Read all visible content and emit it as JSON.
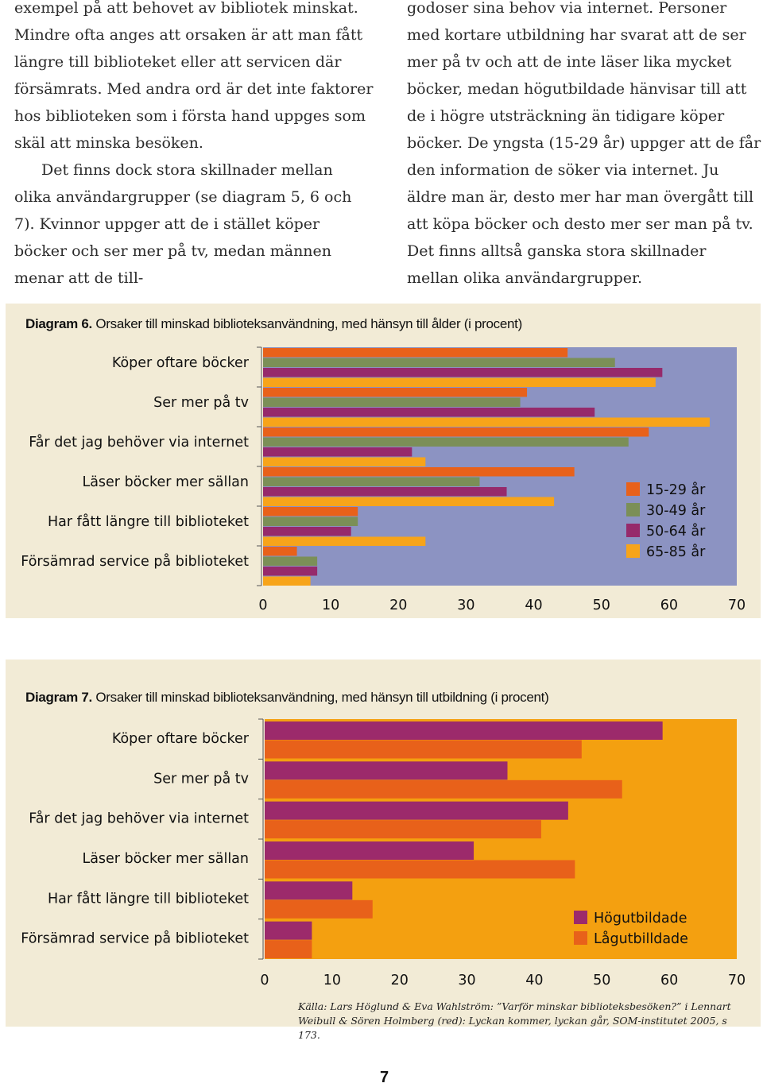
{
  "text": {
    "left_paragraphs": [
      "exempel på att behovet av bibliotek minskat. Mindre ofta anges att orsaken är att man fått längre till biblioteket eller att servicen där försämrats. Med andra ord är det inte faktorer hos biblioteken som i första hand uppges som skäl att minska besöken.",
      "Det finns dock stora skillnader mellan olika användargrupper (se diagram 5, 6 och 7). Kvinnor uppger att de i stället köper böcker och ser mer på tv, medan männen menar att de till-"
    ],
    "right_paragraphs": [
      "godoser sina behov via internet. Personer med kortare utbildning har svarat att de ser mer på tv och att de inte läser lika mycket böcker, medan högutbildade hänvisar till att de i högre utsträckning än tidigare köper böcker. De yngsta (15-29 år) uppger att de får den information de söker via internet. Ju äldre man är, desto mer har man övergått till att köpa böcker och desto mer ser man på tv. Det finns alltså ganska stora skillnader mellan olika användargrupper."
    ]
  },
  "diagram6": {
    "label": "Diagram 6.",
    "title": "Orsaker till minskad biblioteksanvändning, med hänsyn till ålder (i procent)"
  },
  "diagram7": {
    "label": "Diagram 7.",
    "title": "Orsaker till minskad biblioteksanvändning, med hänsyn till utbildning (i procent)"
  },
  "source": "Källa: Lars Höglund & Eva Wahlström: ”Varför minskar biblioteksbesöken?” i Lennart Weibull & Sören Holmberg (red): Lyckan kommer, lyckan går, SOM-institutet 2005, s 173.",
  "page_number": "7",
  "colors": {
    "plot_bg6": "#8c93c2",
    "plot_bg7": "#f4a010",
    "panel_bg": "#f2ebd6",
    "orange": "#e8611a",
    "green": "#7b8f57",
    "purple": "#962a6b",
    "yellow": "#f7a41a",
    "high": "#9c2a6b",
    "low": "#e8611a"
  },
  "chart_data": [
    {
      "type": "bar",
      "orientation": "horizontal",
      "title": "Orsaker till minskad biblioteksanvändning, med hänsyn till ålder (i procent)",
      "categories": [
        "Köper oftare böcker",
        "Ser mer på tv",
        "Får det jag behöver via internet",
        "Läser böcker mer sällan",
        "Har fått längre till biblioteket",
        "Försämrad service på biblioteket"
      ],
      "series": [
        {
          "name": "15-29 år",
          "color": "#e8611a",
          "values": [
            45,
            39,
            57,
            46,
            14,
            5
          ]
        },
        {
          "name": "30-49 år",
          "color": "#7b8f57",
          "values": [
            52,
            38,
            54,
            32,
            14,
            8
          ]
        },
        {
          "name": "50-64 år",
          "color": "#962a6b",
          "values": [
            59,
            49,
            22,
            36,
            13,
            8
          ]
        },
        {
          "name": "65-85 år",
          "color": "#f7a41a",
          "values": [
            58,
            66,
            24,
            43,
            24,
            7
          ]
        }
      ],
      "xlim": [
        0,
        70
      ],
      "xticks": [
        "0",
        "10",
        "20",
        "30",
        "40",
        "50",
        "60",
        "70"
      ],
      "legend": "right"
    },
    {
      "type": "bar",
      "orientation": "horizontal",
      "title": "Orsaker till minskad biblioteksanvändning, med hänsyn till utbildning (i procent)",
      "categories": [
        "Köper oftare böcker",
        "Ser mer på tv",
        "Får det jag behöver via internet",
        "Läser böcker mer sällan",
        "Har fått längre till biblioteket",
        "Försämrad service på biblioteket"
      ],
      "series": [
        {
          "name": "Högutbildade",
          "color": "#9c2a6b",
          "values": [
            59,
            36,
            45,
            31,
            13,
            7
          ]
        },
        {
          "name": "Lågutbilldade",
          "color": "#e8611a",
          "values": [
            47,
            53,
            41,
            46,
            16,
            7
          ]
        }
      ],
      "xlim": [
        0,
        70
      ],
      "xticks": [
        "0",
        "10",
        "20",
        "30",
        "40",
        "50",
        "60",
        "70"
      ],
      "legend": "right"
    }
  ]
}
